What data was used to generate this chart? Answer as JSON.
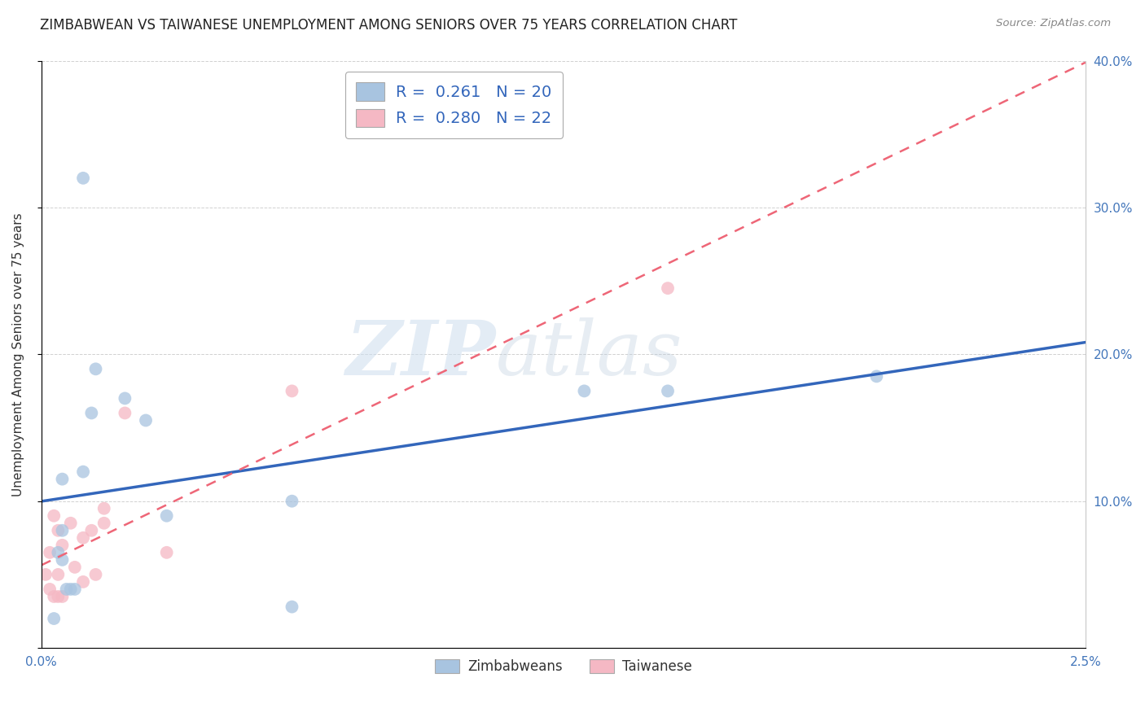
{
  "title": "ZIMBABWEAN VS TAIWANESE UNEMPLOYMENT AMONG SENIORS OVER 75 YEARS CORRELATION CHART",
  "source": "Source: ZipAtlas.com",
  "ylabel": "Unemployment Among Seniors over 75 years",
  "legend_bottom": [
    "Zimbabweans",
    "Taiwanese"
  ],
  "zim_legend": "R =  0.261   N = 20",
  "tai_legend": "R =  0.280   N = 22",
  "xlim": [
    0.0,
    0.025
  ],
  "ylim": [
    0.0,
    0.4
  ],
  "xticks": [
    0.0,
    0.005,
    0.01,
    0.015,
    0.02,
    0.025
  ],
  "xtick_labels": [
    "0.0%",
    "",
    "",
    "",
    "",
    "2.5%"
  ],
  "yticks": [
    0.0,
    0.1,
    0.2,
    0.3,
    0.4
  ],
  "ytick_right_labels": [
    "",
    "10.0%",
    "20.0%",
    "30.0%",
    "40.0%"
  ],
  "zim_color": "#a8c4e0",
  "tai_color": "#f5b8c4",
  "zim_line_color": "#3366bb",
  "tai_line_color": "#ee6677",
  "watermark_zip": "ZIP",
  "watermark_atlas": "atlas",
  "zim_x": [
    0.0003,
    0.0004,
    0.0005,
    0.0005,
    0.0005,
    0.0006,
    0.0007,
    0.0008,
    0.001,
    0.001,
    0.0012,
    0.0013,
    0.002,
    0.0025,
    0.003,
    0.006,
    0.006,
    0.013,
    0.015,
    0.02
  ],
  "zim_y": [
    0.02,
    0.065,
    0.08,
    0.115,
    0.06,
    0.04,
    0.04,
    0.04,
    0.32,
    0.12,
    0.16,
    0.19,
    0.17,
    0.155,
    0.09,
    0.1,
    0.028,
    0.175,
    0.175,
    0.185
  ],
  "tai_x": [
    0.0001,
    0.0002,
    0.0002,
    0.0003,
    0.0003,
    0.0004,
    0.0004,
    0.0004,
    0.0005,
    0.0005,
    0.0007,
    0.0008,
    0.001,
    0.001,
    0.0012,
    0.0013,
    0.0015,
    0.0015,
    0.002,
    0.003,
    0.006,
    0.015
  ],
  "tai_y": [
    0.05,
    0.065,
    0.04,
    0.09,
    0.035,
    0.08,
    0.05,
    0.035,
    0.07,
    0.035,
    0.085,
    0.055,
    0.075,
    0.045,
    0.08,
    0.05,
    0.085,
    0.095,
    0.16,
    0.065,
    0.175,
    0.245
  ],
  "marker_size": 130,
  "title_fontsize": 12,
  "label_fontsize": 11,
  "tick_fontsize": 11,
  "legend_fontsize": 14
}
